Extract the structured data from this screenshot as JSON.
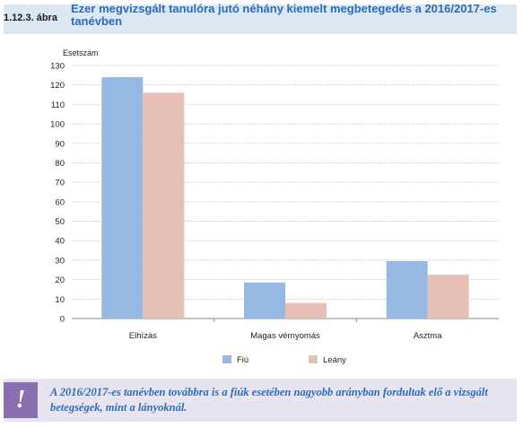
{
  "figure": {
    "number": "1.12.3. ábra",
    "title": "Ezer megvizsgált tanulóra jutó néhány kiemelt megbetegedés a 2016/2017-es tanévben"
  },
  "chart_data": {
    "type": "bar",
    "categories": [
      "Elhízás",
      "Magas vérnyomás",
      "Asztma"
    ],
    "series": [
      {
        "name": "Fiú",
        "color": "#95b9e3",
        "values": [
          124,
          18.5,
          29.5
        ]
      },
      {
        "name": "Leány",
        "color": "#e6bfb7",
        "values": [
          116,
          8,
          22.5
        ]
      }
    ],
    "ylabel": "Esetszám",
    "ylim": [
      0,
      130
    ],
    "yticks": [
      "0",
      "10",
      "20",
      "30",
      "40",
      "50",
      "60",
      "70",
      "80",
      "90",
      "100",
      "110",
      "120",
      "130"
    ],
    "grid": true,
    "legend": "bottom"
  },
  "note": {
    "icon": "exclamation-icon",
    "mark": "!",
    "text": "A 2016/2017-es tanévben továbbra is a fiúk esetében nagyobb arányban fordultak elő a vizsgált betegségek, mint a lányoknál."
  },
  "colors": {
    "header_bg": "#dbe7f3",
    "title": "#2b6cb8",
    "note_bg": "#e8e4ef",
    "note_icon": "#8a6fb0"
  }
}
